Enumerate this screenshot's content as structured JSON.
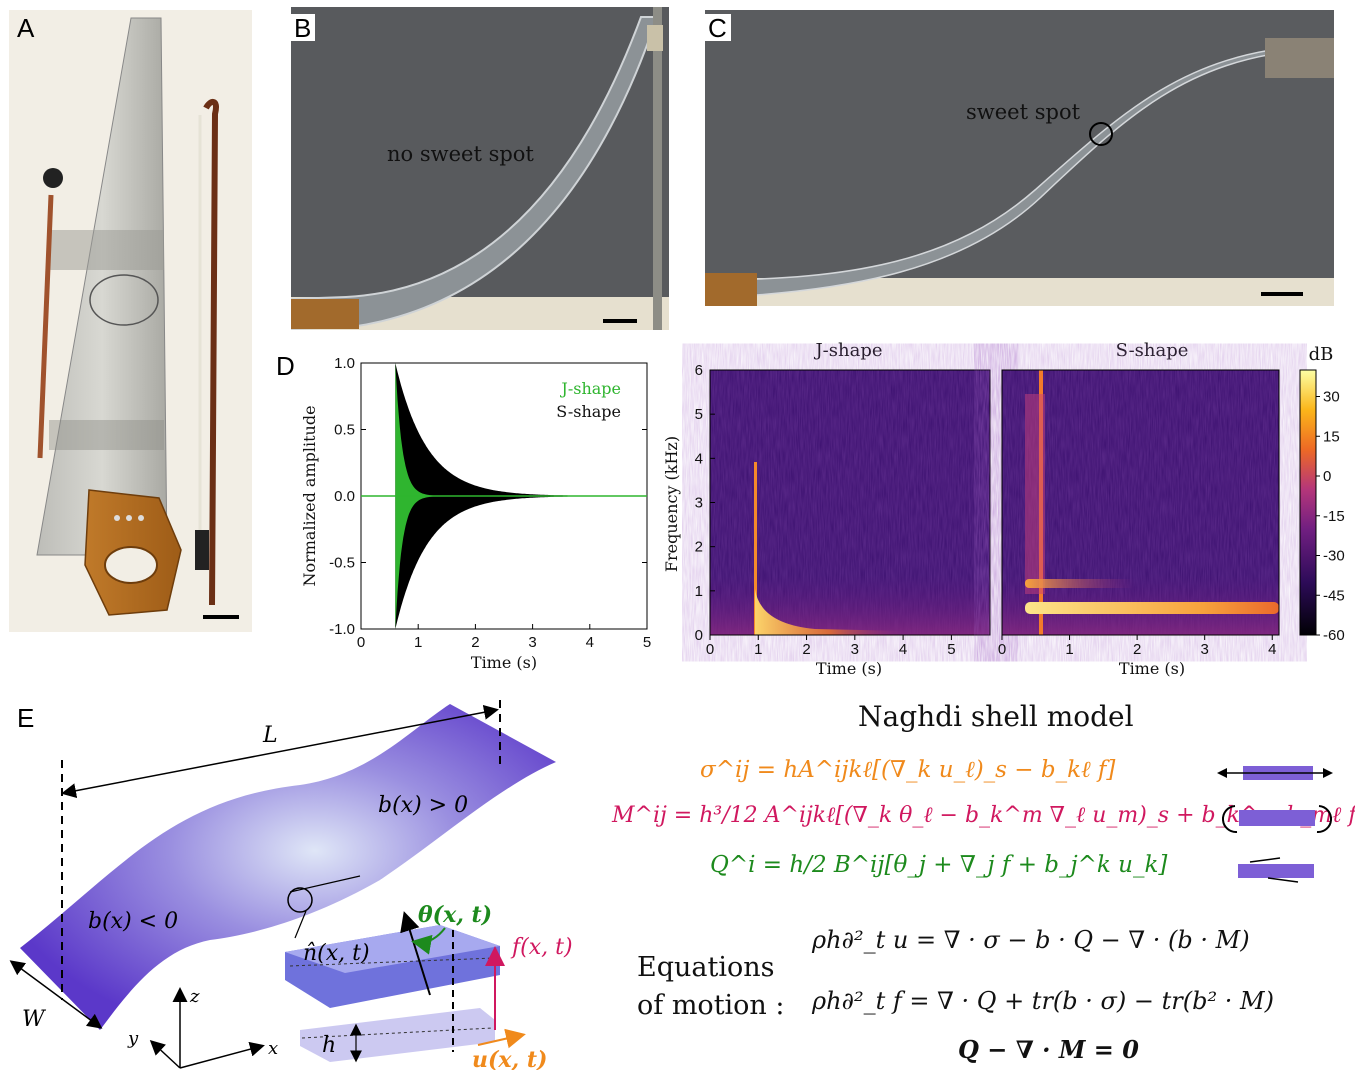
{
  "panels": {
    "A": "A",
    "B": "B",
    "C": "C",
    "D": "D",
    "E": "E"
  },
  "photoB": {
    "caption": "no sweet spot"
  },
  "photoC": {
    "caption": "sweet spot"
  },
  "colors": {
    "green": "#3ab33a",
    "orange": "#f08a1c",
    "magenta": "#d0185f",
    "dkgreen": "#1d8a1d",
    "purple": "#7d5fd6"
  },
  "chart_data": [
    {
      "type": "line",
      "xlabel": "Time (s)",
      "ylabel": "Normalized amplitude",
      "xlim": [
        0,
        5
      ],
      "ylim": [
        -1.0,
        1.0
      ],
      "xticks": [
        "0",
        "1",
        "2",
        "3",
        "4",
        "5"
      ],
      "yticks": [
        "1.0",
        "0.5",
        "0.0",
        "-0.5",
        "-1.0"
      ],
      "legend": "top-right",
      "series": [
        {
          "name": "J-shape",
          "onset": 0.6,
          "peak": 1.0,
          "decay": 0.12,
          "color": "#2fb52f"
        },
        {
          "name": "S-shape",
          "onset": 0.6,
          "peak": 1.0,
          "decay": 0.55,
          "color": "#000000"
        }
      ]
    },
    {
      "type": "heatmap",
      "title": "J-shape",
      "xlabel": "Time (s)",
      "ylabel": "Frequency (kHz)",
      "xlim": [
        0,
        5.8
      ],
      "ylim": [
        0,
        6
      ],
      "xticks": [
        "0",
        "1",
        "2",
        "3",
        "4",
        "5"
      ],
      "yticks": [
        "0",
        "1",
        "2",
        "3",
        "4",
        "5",
        "6"
      ]
    },
    {
      "type": "heatmap",
      "title": "S-shape",
      "xlabel": "Time (s)",
      "xlim": [
        0,
        4.1
      ],
      "ylim": [
        0,
        6
      ],
      "xticks": [
        "0",
        "1",
        "2",
        "3",
        "4"
      ],
      "colorbar": {
        "label": "dB",
        "ticks": [
          "30",
          "15",
          "0",
          "-15",
          "-30",
          "-45",
          "-60"
        ],
        "range": [
          -60,
          40
        ]
      }
    }
  ],
  "panelE": {
    "L": "L",
    "W": "W",
    "bpos": "b(x) > 0",
    "bneg": "b(x) < 0",
    "theta": "θ(x, t)",
    "nhat": "n̂(x, t)",
    "f": "f(x, t)",
    "u": "u(x, t)",
    "h": "h",
    "axis_x": "x",
    "axis_y": "y",
    "axis_z": "z"
  },
  "model": {
    "title": "Naghdi shell model",
    "eq1": "σ^ij = hA^ijkℓ[(∇_k u_ℓ)_s − b_kℓ f]",
    "eq2": "M^ij = h³/12 A^ijkℓ[(∇_k θ_ℓ − b_k^m ∇_ℓ u_m)_s + b_k^m b_mℓ f]",
    "eq3": "Q^i = h/2 B^ij[θ_j + ∇_j f + b_j^k u_k]",
    "eom_label1": "Equations",
    "eom_label2": "of motion :",
    "eom1": "ρh∂²_t u = ∇ · σ − b · Q − ∇ · (b · M)",
    "eom2": "ρh∂²_t f = ∇ · Q + tr(b · σ) − tr(b² · M)",
    "eom3": "Q − ∇ · M = 0"
  }
}
